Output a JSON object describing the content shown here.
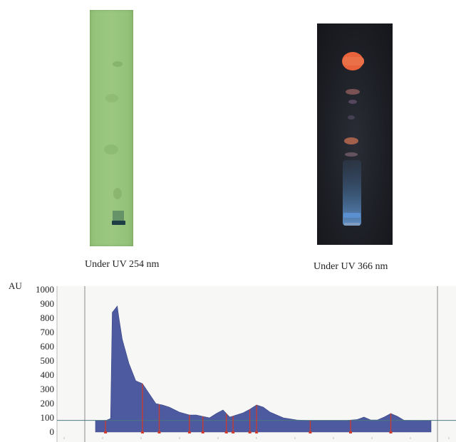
{
  "images": {
    "plate_254": {
      "caption": "Under UV 254 nm",
      "background": "#9bc780",
      "band_color": "#1e3d44"
    },
    "plate_366": {
      "caption": "Under UV 366 nm",
      "background": "#1c1e24",
      "top_band_color": "#e8623c",
      "bottom_band_color": "#5a8fd0"
    }
  },
  "chart_data": {
    "type": "area",
    "ylabel": "AU",
    "ylim": [
      0,
      1000
    ],
    "yticks": [
      0,
      100,
      200,
      300,
      400,
      500,
      600,
      700,
      800,
      900,
      1000
    ],
    "xlim": [
      0,
      100
    ],
    "fill_color": "#4d5aa0",
    "baseline_color": "#4a7a80",
    "marker_color": "#d03a2a",
    "x": [
      0,
      3,
      4.5,
      5,
      6.5,
      7,
      8,
      10,
      12,
      14,
      16,
      18,
      20,
      22,
      25,
      28,
      30,
      32,
      34,
      36,
      38,
      40,
      42,
      44,
      46,
      48,
      50,
      52,
      54,
      56,
      58,
      60,
      62,
      64,
      68,
      74,
      78,
      80,
      82,
      84,
      86,
      88,
      90,
      92,
      100
    ],
    "y": [
      80,
      80,
      95,
      840,
      885,
      800,
      650,
      480,
      360,
      340,
      270,
      200,
      190,
      175,
      140,
      120,
      120,
      110,
      100,
      130,
      155,
      105,
      120,
      135,
      160,
      190,
      175,
      140,
      120,
      100,
      92,
      85,
      82,
      80,
      80,
      80,
      88,
      105,
      85,
      85,
      105,
      130,
      110,
      82,
      80
    ],
    "peak_markers_x": [
      3,
      14,
      19,
      28,
      32,
      39,
      41,
      46,
      48,
      64,
      76,
      88
    ]
  }
}
